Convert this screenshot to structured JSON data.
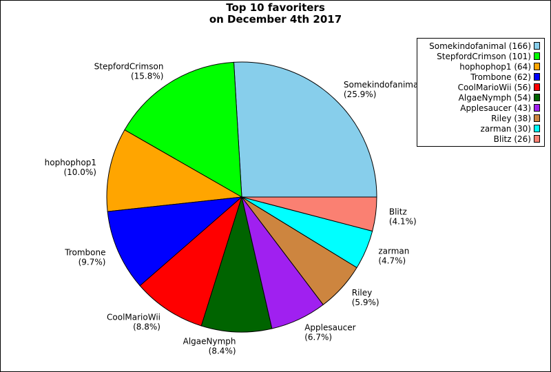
{
  "chart_data": {
    "type": "pie",
    "title": [
      "Top 10 favoriters",
      "on December 4th 2017"
    ],
    "slices": [
      {
        "name": "Somekindofanimal",
        "value": 166,
        "color": "#87ceeb",
        "label_name": "Somekindofanimal",
        "label_pct": "(25.9%)",
        "legend": "Somekindofanimal (166)"
      },
      {
        "name": "StepfordCrimson",
        "value": 101,
        "color": "#00ff00",
        "label_name": "StepfordCrimson",
        "label_pct": "(15.8%)",
        "legend": "StepfordCrimson (101)"
      },
      {
        "name": "hophophop1",
        "value": 64,
        "color": "#ffa500",
        "label_name": "hophophop1",
        "label_pct": "(10.0%)",
        "legend": "hophophop1 (64)"
      },
      {
        "name": "Trombone",
        "value": 62,
        "color": "#0000ff",
        "label_name": "Trombone",
        "label_pct": "(9.7%)",
        "legend": "Trombone (62)"
      },
      {
        "name": "CoolMarioWii",
        "value": 56,
        "color": "#ff0000",
        "label_name": "CoolMarioWii",
        "label_pct": "(8.8%)",
        "legend": "CoolMarioWii (56)"
      },
      {
        "name": "AlgaeNymph",
        "value": 54,
        "color": "#006400",
        "label_name": "AlgaeNymph",
        "label_pct": "(8.4%)",
        "legend": "AlgaeNymph (54)"
      },
      {
        "name": "Applesaucer",
        "value": 43,
        "color": "#a020f0",
        "label_name": "Applesaucer",
        "label_pct": "(6.7%)",
        "legend": "Applesaucer (43)"
      },
      {
        "name": "Riley",
        "value": 38,
        "color": "#cd853f",
        "label_name": "Riley",
        "label_pct": "(5.9%)",
        "legend": "Riley (38)"
      },
      {
        "name": "zarman",
        "value": 30,
        "color": "#00ffff",
        "label_name": "zarman",
        "label_pct": "(4.7%)",
        "legend": "zarman (30)"
      },
      {
        "name": "Blitz",
        "value": 26,
        "color": "#fa8072",
        "label_name": "Blitz",
        "label_pct": "(4.1%)",
        "legend": "Blitz (26)"
      }
    ],
    "start_direction": "east",
    "direction": "counterclockwise",
    "legend_position": "top-right"
  }
}
